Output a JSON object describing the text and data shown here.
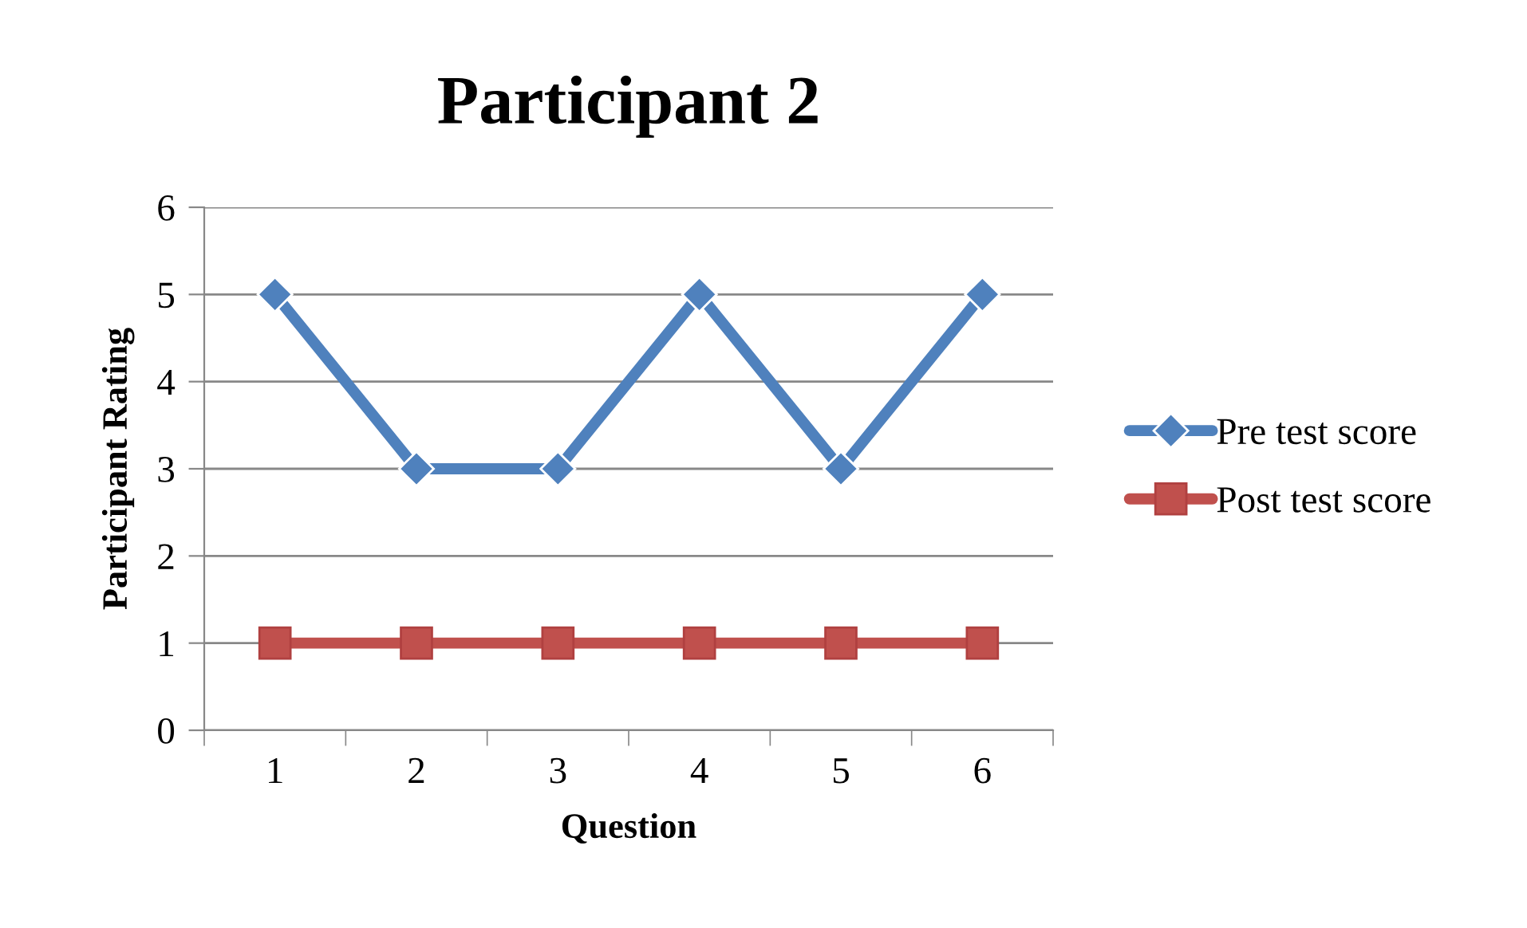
{
  "chart_data": {
    "type": "line",
    "title": "Participant 2",
    "xlabel": "Question",
    "ylabel": "Participant Rating",
    "categories": [
      "1",
      "2",
      "3",
      "4",
      "5",
      "6"
    ],
    "series": [
      {
        "name": "Pre test score",
        "color": "#4f81bd",
        "marker": "diamond",
        "values": [
          5,
          3,
          3,
          5,
          3,
          5
        ]
      },
      {
        "name": "Post test score",
        "color": "#c0504d",
        "marker": "square",
        "values": [
          1,
          1,
          1,
          1,
          1,
          1
        ]
      }
    ],
    "ylim": [
      0,
      6
    ],
    "yticks": [
      0,
      1,
      2,
      3,
      4,
      5,
      6
    ],
    "grid": "y",
    "legend": "right"
  }
}
